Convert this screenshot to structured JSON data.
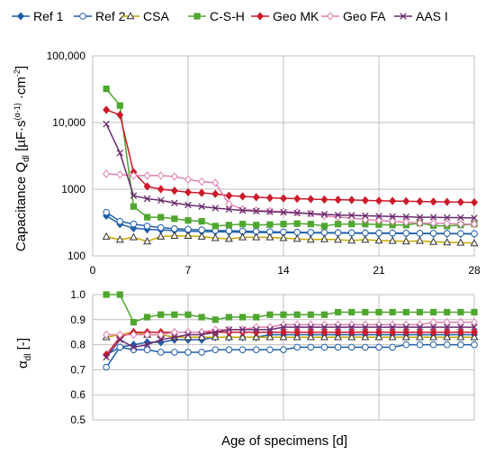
{
  "chart_data": [
    {
      "type": "line",
      "ylabel": "Capacitance Q_dl [µF·s^(α-1)·cm^-2]",
      "yscale": "log",
      "ylim": [
        100,
        100000
      ],
      "xlim": [
        0,
        28
      ],
      "x_ticks": [
        "0",
        "7",
        "14",
        "21",
        "28"
      ],
      "y_ticks": [
        "100",
        "1000",
        "10,000",
        "100,000"
      ],
      "grid": true,
      "legend": "top",
      "series": [
        {
          "name": "Ref 1",
          "color": "#1f5fa8",
          "marker": "diamond-filled",
          "x": [
            1,
            2,
            3,
            4,
            5,
            6,
            7,
            8,
            9,
            10,
            11,
            12,
            13,
            14,
            15,
            16,
            17,
            18,
            19,
            20,
            21,
            22,
            23,
            24,
            25,
            26,
            27,
            28
          ],
          "values": [
            400,
            300,
            260,
            250,
            245,
            240,
            235,
            232,
            230,
            228,
            226,
            225,
            224,
            223,
            222,
            221,
            220,
            220,
            219,
            218,
            218,
            217,
            216,
            216,
            215,
            215,
            214,
            213
          ]
        },
        {
          "name": "Ref 2",
          "color": "#1f5fa8",
          "marker": "circle-open",
          "x": [
            1,
            2,
            3,
            4,
            5,
            6,
            7,
            8,
            9,
            10,
            11,
            12,
            13,
            14,
            15,
            16,
            17,
            18,
            19,
            20,
            21,
            22,
            23,
            24,
            25,
            26,
            27,
            28
          ],
          "values": [
            450,
            330,
            300,
            280,
            265,
            255,
            250,
            245,
            240,
            238,
            235,
            232,
            230,
            228,
            226,
            225,
            224,
            223,
            222,
            221,
            220,
            220,
            219,
            218,
            218,
            217,
            216,
            215
          ]
        },
        {
          "name": "CSA",
          "color": "#c8a800",
          "marker": "triangle-open",
          "x": [
            1,
            2,
            3,
            4,
            5,
            6,
            7,
            8,
            9,
            10,
            11,
            12,
            13,
            14,
            15,
            16,
            17,
            18,
            19,
            20,
            21,
            22,
            23,
            24,
            25,
            26,
            27,
            28
          ],
          "values": [
            195,
            175,
            190,
            165,
            195,
            200,
            200,
            195,
            185,
            180,
            190,
            190,
            190,
            185,
            180,
            175,
            178,
            175,
            170,
            175,
            170,
            168,
            165,
            168,
            162,
            160,
            158,
            155
          ]
        },
        {
          "name": "C-S-H",
          "color": "#4ea72e",
          "marker": "square-filled",
          "x": [
            1,
            2,
            3,
            4,
            5,
            6,
            7,
            8,
            9,
            10,
            11,
            12,
            13,
            14,
            15,
            16,
            17,
            18,
            19,
            20,
            21,
            22,
            23,
            24,
            25,
            26,
            27,
            28
          ],
          "values": [
            32000,
            18000,
            550,
            380,
            380,
            360,
            340,
            330,
            280,
            290,
            300,
            290,
            295,
            300,
            305,
            300,
            280,
            300,
            300,
            300,
            295,
            290,
            290,
            310,
            285,
            280,
            290,
            300
          ]
        },
        {
          "name": "Geo MK",
          "color": "#cc1b2c",
          "marker": "diamond-filled",
          "x": [
            1,
            2,
            3,
            4,
            5,
            6,
            7,
            8,
            9,
            10,
            11,
            12,
            13,
            14,
            15,
            16,
            17,
            18,
            19,
            20,
            21,
            22,
            23,
            24,
            25,
            26,
            27,
            28
          ],
          "values": [
            15500,
            13000,
            1800,
            1100,
            1000,
            950,
            900,
            880,
            850,
            800,
            780,
            760,
            740,
            730,
            720,
            710,
            700,
            695,
            690,
            680,
            670,
            665,
            660,
            655,
            650,
            645,
            640,
            635
          ]
        },
        {
          "name": "Geo FA",
          "color": "#e07faf",
          "marker": "diamond-open",
          "x": [
            1,
            2,
            3,
            4,
            5,
            6,
            7,
            8,
            9,
            10,
            11,
            12,
            13,
            14,
            15,
            16,
            17,
            18,
            19,
            20,
            21,
            22,
            23,
            24,
            25,
            26,
            27,
            28
          ],
          "values": [
            1700,
            1650,
            1600,
            1600,
            1600,
            1550,
            1400,
            1300,
            1250,
            600,
            500,
            480,
            470,
            460,
            450,
            430,
            400,
            380,
            370,
            350,
            340,
            330,
            320,
            310,
            310,
            305,
            300,
            300
          ]
        },
        {
          "name": "AAS I",
          "color": "#6a2a6e",
          "marker": "x",
          "x": [
            1,
            2,
            3,
            4,
            5,
            6,
            7,
            8,
            9,
            10,
            11,
            12,
            13,
            14,
            15,
            16,
            17,
            18,
            19,
            20,
            21,
            22,
            23,
            24,
            25,
            26,
            27,
            28
          ],
          "values": [
            9500,
            3500,
            800,
            720,
            680,
            620,
            580,
            550,
            520,
            500,
            480,
            470,
            460,
            450,
            440,
            430,
            420,
            410,
            405,
            400,
            395,
            390,
            385,
            380,
            380,
            375,
            375,
            370
          ]
        }
      ]
    },
    {
      "type": "line",
      "xlabel": "Age of specimens [d]",
      "ylabel": "α_dl [-]",
      "ylim": [
        0.5,
        1.0
      ],
      "xlim": [
        0,
        28
      ],
      "y_ticks": [
        "0.5",
        "0.6",
        "0.7",
        "0.8",
        "0.9",
        "1.0"
      ],
      "grid": true,
      "series": [
        {
          "name": "Ref 1",
          "x": [
            1,
            2,
            3,
            4,
            5,
            6,
            7,
            8,
            9,
            10,
            11,
            12,
            13,
            14,
            15,
            16,
            17,
            18,
            19,
            20,
            21,
            22,
            23,
            24,
            25,
            26,
            27,
            28
          ],
          "values": [
            0.76,
            0.79,
            0.8,
            0.81,
            0.81,
            0.82,
            0.82,
            0.82,
            0.83,
            0.83,
            0.83,
            0.83,
            0.84,
            0.84,
            0.84,
            0.84,
            0.84,
            0.84,
            0.84,
            0.84,
            0.84,
            0.84,
            0.84,
            0.84,
            0.84,
            0.84,
            0.84,
            0.84
          ]
        },
        {
          "name": "Ref 2",
          "x": [
            1,
            2,
            3,
            4,
            5,
            6,
            7,
            8,
            9,
            10,
            11,
            12,
            13,
            14,
            15,
            16,
            17,
            18,
            19,
            20,
            21,
            22,
            23,
            24,
            25,
            26,
            27,
            28
          ],
          "values": [
            0.71,
            0.79,
            0.78,
            0.78,
            0.77,
            0.77,
            0.77,
            0.77,
            0.78,
            0.78,
            0.78,
            0.78,
            0.78,
            0.78,
            0.79,
            0.79,
            0.79,
            0.79,
            0.79,
            0.79,
            0.79,
            0.79,
            0.8,
            0.8,
            0.8,
            0.8,
            0.8,
            0.8
          ]
        },
        {
          "name": "CSA",
          "x": [
            1,
            2,
            3,
            4,
            5,
            6,
            7,
            8,
            9,
            10,
            11,
            12,
            13,
            14,
            15,
            16,
            17,
            18,
            19,
            20,
            21,
            22,
            23,
            24,
            25,
            26,
            27,
            28
          ],
          "values": [
            0.83,
            0.84,
            0.85,
            0.84,
            0.84,
            0.83,
            0.83,
            0.83,
            0.83,
            0.83,
            0.83,
            0.83,
            0.83,
            0.83,
            0.83,
            0.83,
            0.83,
            0.83,
            0.83,
            0.83,
            0.83,
            0.83,
            0.83,
            0.83,
            0.83,
            0.83,
            0.83,
            0.83
          ]
        },
        {
          "name": "C-S-H",
          "x": [
            1,
            2,
            3,
            4,
            5,
            6,
            7,
            8,
            9,
            10,
            11,
            12,
            13,
            14,
            15,
            16,
            17,
            18,
            19,
            20,
            21,
            22,
            23,
            24,
            25,
            26,
            27,
            28
          ],
          "values": [
            1.0,
            1.0,
            0.89,
            0.91,
            0.92,
            0.92,
            0.92,
            0.91,
            0.9,
            0.91,
            0.91,
            0.91,
            0.92,
            0.92,
            0.92,
            0.92,
            0.92,
            0.93,
            0.93,
            0.93,
            0.93,
            0.93,
            0.93,
            0.93,
            0.93,
            0.93,
            0.93,
            0.93
          ]
        },
        {
          "name": "Geo MK",
          "x": [
            1,
            2,
            3,
            4,
            5,
            6,
            7,
            8,
            9,
            10,
            11,
            12,
            13,
            14,
            15,
            16,
            17,
            18,
            19,
            20,
            21,
            22,
            23,
            24,
            25,
            26,
            27,
            28
          ],
          "values": [
            0.76,
            0.83,
            0.85,
            0.85,
            0.85,
            0.85,
            0.85,
            0.85,
            0.85,
            0.85,
            0.85,
            0.85,
            0.85,
            0.85,
            0.85,
            0.85,
            0.85,
            0.85,
            0.85,
            0.85,
            0.85,
            0.85,
            0.85,
            0.85,
            0.85,
            0.85,
            0.85,
            0.85
          ]
        },
        {
          "name": "Geo FA",
          "x": [
            1,
            2,
            3,
            4,
            5,
            6,
            7,
            8,
            9,
            10,
            11,
            12,
            13,
            14,
            15,
            16,
            17,
            18,
            19,
            20,
            21,
            22,
            23,
            24,
            25,
            26,
            27,
            28
          ],
          "values": [
            0.84,
            0.84,
            0.84,
            0.84,
            0.84,
            0.85,
            0.85,
            0.85,
            0.86,
            0.86,
            0.86,
            0.87,
            0.87,
            0.88,
            0.88,
            0.88,
            0.88,
            0.88,
            0.88,
            0.88,
            0.88,
            0.88,
            0.88,
            0.88,
            0.89,
            0.89,
            0.89,
            0.89
          ]
        },
        {
          "name": "AAS I",
          "x": [
            1,
            2,
            3,
            4,
            5,
            6,
            7,
            8,
            9,
            10,
            11,
            12,
            13,
            14,
            15,
            16,
            17,
            18,
            19,
            20,
            21,
            22,
            23,
            24,
            25,
            26,
            27,
            28
          ],
          "values": [
            0.75,
            0.82,
            0.79,
            0.8,
            0.82,
            0.83,
            0.84,
            0.84,
            0.85,
            0.86,
            0.86,
            0.86,
            0.86,
            0.87,
            0.87,
            0.87,
            0.87,
            0.87,
            0.87,
            0.87,
            0.87,
            0.87,
            0.87,
            0.87,
            0.87,
            0.87,
            0.87,
            0.87
          ]
        }
      ]
    }
  ]
}
